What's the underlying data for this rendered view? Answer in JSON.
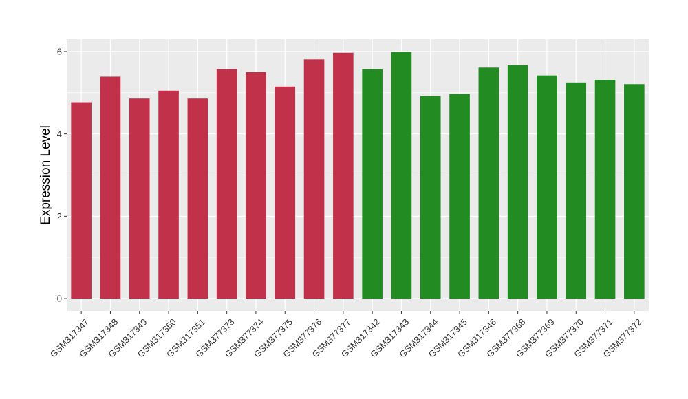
{
  "chart_data": {
    "type": "bar",
    "title": "",
    "xlabel": "",
    "ylabel": "Expression Level",
    "ylim": [
      -0.3,
      6.3
    ],
    "yticks": [
      0,
      2,
      4,
      6
    ],
    "grid": true,
    "legend": "none",
    "categories": [
      "GSM317347",
      "GSM317348",
      "GSM317349",
      "GSM317350",
      "GSM317351",
      "GSM377373",
      "GSM377374",
      "GSM377375",
      "GSM377376",
      "GSM377377",
      "GSM317342",
      "GSM317343",
      "GSM317344",
      "GSM317345",
      "GSM317346",
      "GSM377368",
      "GSM377369",
      "GSM377370",
      "GSM377371",
      "GSM377372"
    ],
    "values": [
      4.77,
      5.39,
      4.86,
      5.05,
      4.86,
      5.57,
      5.5,
      5.15,
      5.81,
      5.97,
      5.57,
      5.99,
      4.92,
      4.97,
      5.61,
      5.67,
      5.42,
      5.25,
      5.31,
      5.21
    ],
    "groups": [
      0,
      0,
      0,
      0,
      0,
      0,
      0,
      0,
      0,
      0,
      1,
      1,
      1,
      1,
      1,
      1,
      1,
      1,
      1,
      1
    ],
    "group_colors": [
      "#c1314a",
      "#228b22"
    ],
    "panel_background": "#ebebeb",
    "grid_color": "#ffffff"
  }
}
